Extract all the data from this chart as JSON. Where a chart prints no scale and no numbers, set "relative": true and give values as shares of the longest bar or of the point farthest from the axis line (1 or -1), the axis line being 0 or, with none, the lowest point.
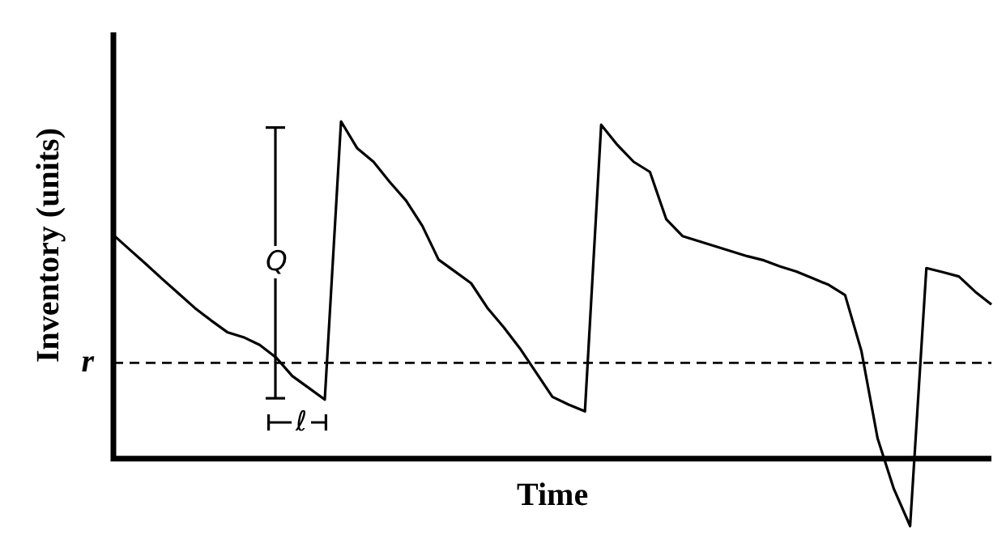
{
  "chart_data": {
    "type": "line",
    "xlabel": "Time",
    "ylabel": "Inventory (units)",
    "relative": true,
    "tick_labels": false,
    "legend": false,
    "categories": [
      null,
      null,
      null,
      null,
      null,
      null,
      null,
      null,
      null,
      null,
      null,
      null,
      null,
      null,
      null,
      null,
      null,
      null,
      null,
      null,
      null,
      null,
      null,
      null,
      null,
      null,
      null,
      null,
      null,
      null,
      null,
      null,
      null,
      null,
      null,
      null,
      null,
      null,
      null,
      null,
      null,
      null,
      null,
      null,
      null,
      null,
      null,
      null,
      null,
      null,
      null,
      null,
      null,
      null,
      null
    ],
    "series": [
      {
        "color": "#000000",
        "values": [
          0.663,
          0.62,
          0.577,
          0.533,
          0.49,
          0.447,
          0.41,
          0.375,
          0.36,
          0.337,
          0.3,
          0.245,
          0.21,
          0.175,
          1,
          0.92,
          0.88,
          0.82,
          0.765,
          0.69,
          0.59,
          0.555,
          0.52,
          0.447,
          0.39,
          0.327,
          0.255,
          0.183,
          0.16,
          0.14,
          0.99,
          0.93,
          0.88,
          0.85,
          0.71,
          0.66,
          0.645,
          0.63,
          0.615,
          0.6,
          0.588,
          0.57,
          0.555,
          0.535,
          0.515,
          0.485,
          0.32,
          0.06,
          -0.09,
          -0.2,
          0.565,
          0.553,
          0.54,
          0.495,
          0.457
        ]
      }
    ],
    "ref_lines": [
      {
        "axis": "y",
        "value": 0.284,
        "label": "r",
        "line_style": "dashed",
        "color": "#000000"
      }
    ],
    "annotations": [
      "Q",
      "ℓ"
    ]
  }
}
